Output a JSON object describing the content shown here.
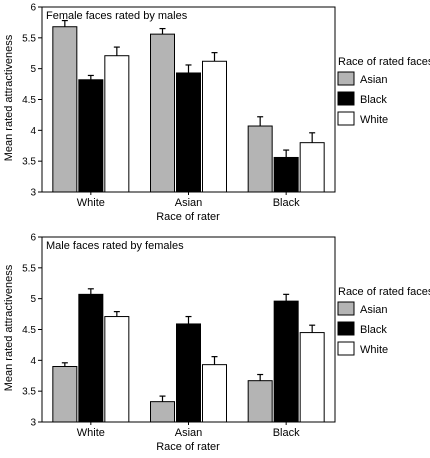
{
  "chart_data": [
    {
      "type": "bar",
      "title": "Female faces rated by males",
      "xlabel": "Race of rater",
      "ylabel": "Mean rated attractiveness",
      "ylim": [
        3,
        6
      ],
      "yticks": [
        "3",
        "3.5",
        "4",
        "4.5",
        "5",
        "5.5",
        "6"
      ],
      "categories": [
        "White",
        "Asian",
        "Black"
      ],
      "legend_title": "Race of rated faces",
      "legend_position": "right",
      "error_bars": true,
      "series": [
        {
          "name": "Asian",
          "color": "#b4b4b4",
          "values": [
            5.68,
            5.56,
            4.07
          ],
          "errors": [
            0.1,
            0.09,
            0.15
          ]
        },
        {
          "name": "Black",
          "color": "#000000",
          "values": [
            4.82,
            4.93,
            3.56
          ],
          "errors": [
            0.07,
            0.13,
            0.12
          ]
        },
        {
          "name": "White",
          "color": "#ffffff",
          "values": [
            5.21,
            5.12,
            3.8
          ],
          "errors": [
            0.14,
            0.14,
            0.16
          ]
        }
      ]
    },
    {
      "type": "bar",
      "title": "Male faces rated by females",
      "xlabel": "Race of rater",
      "ylabel": "Mean rated attractiveness",
      "ylim": [
        3,
        6
      ],
      "yticks": [
        "3",
        "3.5",
        "4",
        "4.5",
        "5",
        "5.5",
        "6"
      ],
      "categories": [
        "White",
        "Asian",
        "Black"
      ],
      "legend_title": "Race of rated faces",
      "legend_position": "right",
      "error_bars": true,
      "series": [
        {
          "name": "Asian",
          "color": "#b4b4b4",
          "values": [
            3.9,
            3.33,
            3.67
          ],
          "errors": [
            0.06,
            0.09,
            0.1
          ]
        },
        {
          "name": "Black",
          "color": "#000000",
          "values": [
            5.07,
            4.59,
            4.96
          ],
          "errors": [
            0.09,
            0.12,
            0.11
          ]
        },
        {
          "name": "White",
          "color": "#ffffff",
          "values": [
            4.71,
            3.93,
            4.45
          ],
          "errors": [
            0.08,
            0.13,
            0.12
          ]
        }
      ]
    }
  ]
}
